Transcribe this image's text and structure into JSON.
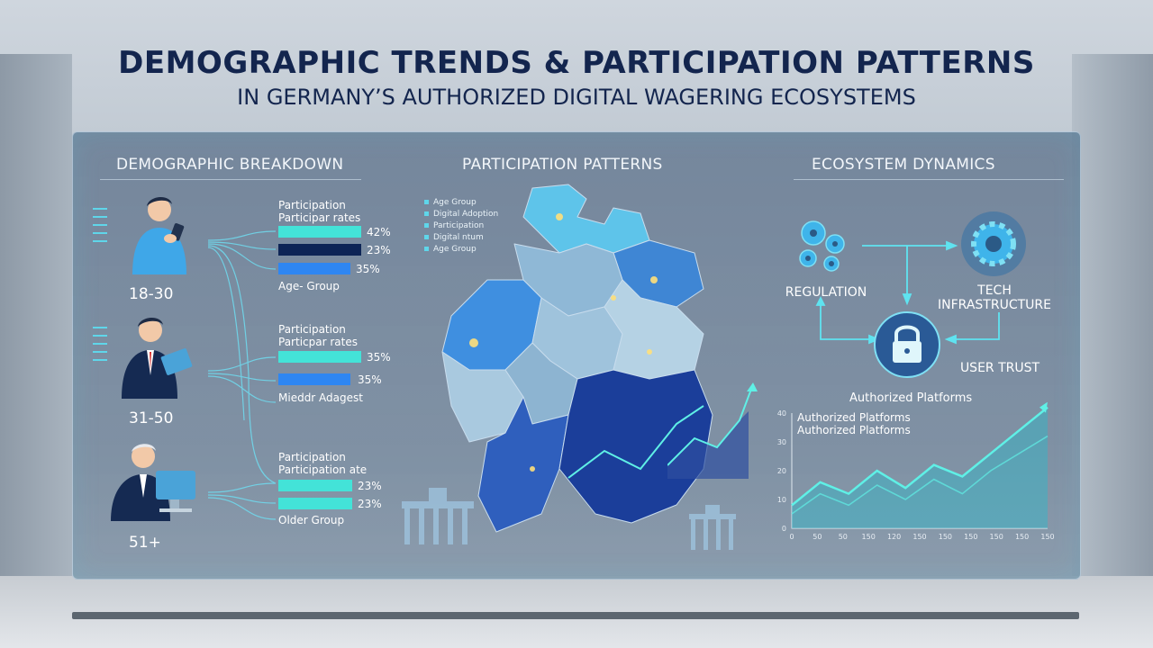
{
  "header": {
    "title": "DEMOGRAPHIC TRENDS & PARTICIPATION PATTERNS",
    "subtitle": "IN GERMANY’S AUTHORIZED DIGITAL WAGERING ECOSYSTEMS"
  },
  "sections": {
    "demographic": "DEMOGRAPHIC BREAKDOWN",
    "participation": "PARTICIPATION PATTERNS",
    "ecosystem": "ECOSYSTEM DYNAMICS"
  },
  "demographics": [
    {
      "age": "18-30",
      "label_line1": "Participation",
      "label_line2": "Participar rates",
      "bars": [
        {
          "value": "42%",
          "fraction": 0.92,
          "color": "#43e3d8"
        },
        {
          "value": "23%",
          "fraction": 0.92,
          "color": "#0d2456"
        },
        {
          "value": "35%",
          "fraction": 0.82,
          "color": "#2e86f2"
        }
      ],
      "group": "Age- Group"
    },
    {
      "age": "31-50",
      "label_line1": "Participation",
      "label_line2": "Particpar rates",
      "bars": [
        {
          "value": "35%",
          "fraction": 0.92,
          "color": "#43e3d8"
        },
        {
          "value": "35%",
          "fraction": 0.82,
          "color": "#2e86f2"
        }
      ],
      "group": "Mieddr Adagest"
    },
    {
      "age": "51+",
      "label_line1": "Participation",
      "label_line2": "Participation ate",
      "bars": [
        {
          "value": "23%",
          "fraction": 0.92,
          "color": "#43e3d8"
        },
        {
          "value": "23%",
          "fraction": 0.92,
          "color": "#43e3d8"
        }
      ],
      "group": "Older Group"
    }
  ],
  "map_legend": [
    "Age Group",
    "Digital Adoption",
    "Participation",
    "Digital ntum",
    "Age Group"
  ],
  "ecosystem": {
    "regulation": "REGULATION",
    "tech_line1": "TECH",
    "tech_line2": "INFRASTRUCTURE",
    "user_trust": "USER TRUST"
  },
  "chart_data": {
    "type": "line",
    "title": "Authorized Platforms",
    "legend": [
      "Authorized Platforms",
      "Authorized Platforms"
    ],
    "y_ticks": [
      "40",
      "30",
      "20",
      "10",
      "0"
    ],
    "x_ticks": [
      "0",
      "50",
      "50",
      "150",
      "120",
      "150",
      "150",
      "150",
      "150",
      "150",
      "150"
    ],
    "ylim": [
      0,
      40
    ],
    "series": [
      {
        "values": [
          8,
          16,
          12,
          20,
          14,
          22,
          18,
          26,
          34,
          42
        ]
      },
      {
        "values": [
          5,
          12,
          8,
          15,
          10,
          17,
          12,
          20,
          26,
          32
        ]
      }
    ],
    "colors": {
      "line": "#5ff0e6",
      "fill": "#2fb7c9"
    }
  },
  "icons": {
    "person": "person-icon",
    "gear": "gear-icon",
    "lock": "lock-icon",
    "landmark": "brandenburg-gate-icon"
  }
}
